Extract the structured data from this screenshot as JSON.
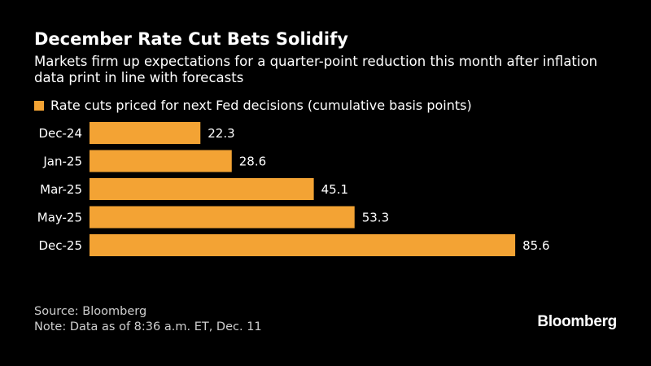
{
  "header": {
    "title": "December Rate Cut Bets Solidify",
    "subtitle": "Markets firm up expectations for a quarter-point reduction this month after inflation data print in line with forecasts"
  },
  "footer": {
    "source": "Source: Bloomberg",
    "note": "Note: Data as of 8:36 a.m. ET, Dec. 11",
    "logo": "Bloomberg"
  },
  "colors": {
    "background": "#000000",
    "bar": "#f3a334",
    "text": "#ffffff"
  },
  "chart_data": {
    "type": "bar",
    "orientation": "horizontal",
    "title": "December Rate Cut Bets Solidify",
    "categories": [
      "Dec-24",
      "Jan-25",
      "Mar-25",
      "May-25",
      "Dec-25"
    ],
    "series": [
      {
        "name": "Rate cuts priced for next Fed decisions (cumulative basis points)",
        "values": [
          22.3,
          28.6,
          45.1,
          53.3,
          85.6
        ]
      }
    ],
    "xlim": [
      0,
      90
    ],
    "xlabel": "",
    "ylabel": "",
    "grid": false,
    "legend": "top-left"
  }
}
